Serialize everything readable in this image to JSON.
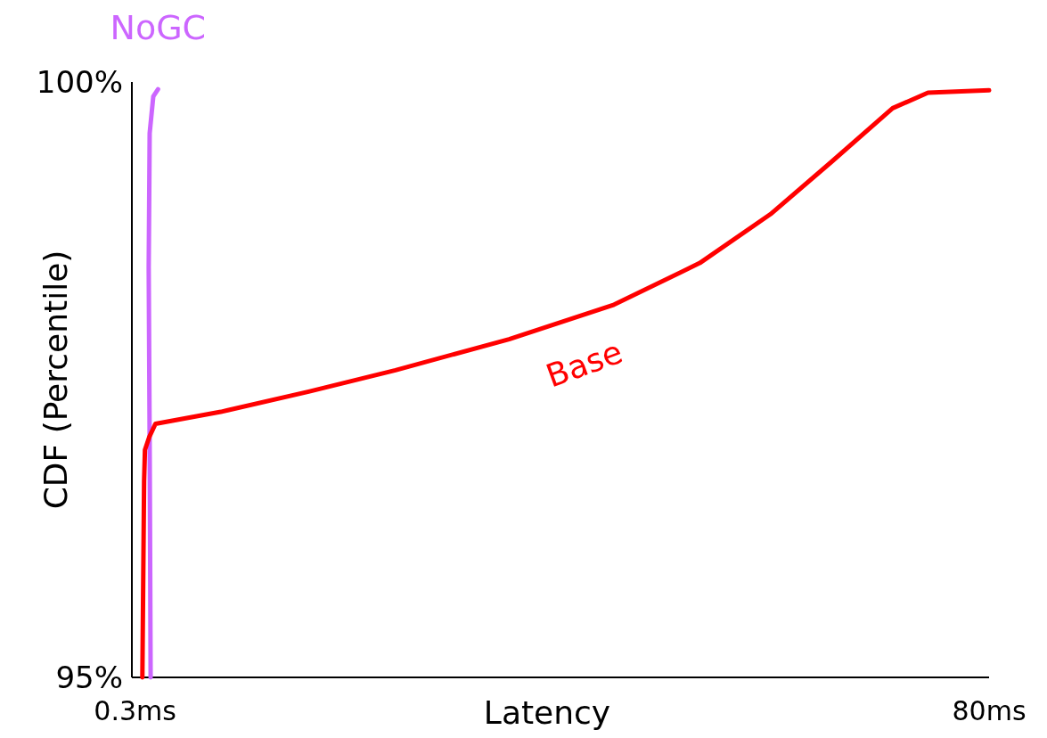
{
  "chart_data": {
    "type": "line",
    "xlabel": "Latency",
    "ylabel": "CDF (Percentile)",
    "xlim": [
      0,
      80
    ],
    "xticks": [
      {
        "value": 0.3,
        "label": "0.3ms"
      },
      {
        "value": 80,
        "label": "80ms"
      }
    ],
    "ylim": [
      95,
      100
    ],
    "yticks": [
      {
        "value": 95,
        "label": "95%"
      },
      {
        "value": 100,
        "label": "100%"
      }
    ],
    "grid": false,
    "marker": "none",
    "line_style": "solid",
    "series": [
      {
        "name": "Base",
        "color": "#ff0000",
        "x": [
          0.98,
          1.14,
          1.22,
          1.63,
          2.2,
          8.3,
          16.5,
          24.6,
          35.2,
          45.0,
          53.0,
          59.6,
          65.3,
          71.0,
          74.3,
          80
        ],
        "values": [
          95.0,
          96.65,
          96.91,
          97.02,
          97.13,
          97.23,
          97.4,
          97.58,
          97.84,
          98.13,
          98.48,
          98.89,
          99.33,
          99.78,
          99.91,
          99.93
        ]
      },
      {
        "name": "NoGC",
        "color": "#cc66ff",
        "x": [
          1.75,
          1.66,
          1.57,
          1.66,
          2.0,
          2.44
        ],
        "values": [
          95.0,
          96.95,
          98.44,
          99.57,
          99.88,
          99.94
        ]
      }
    ]
  }
}
